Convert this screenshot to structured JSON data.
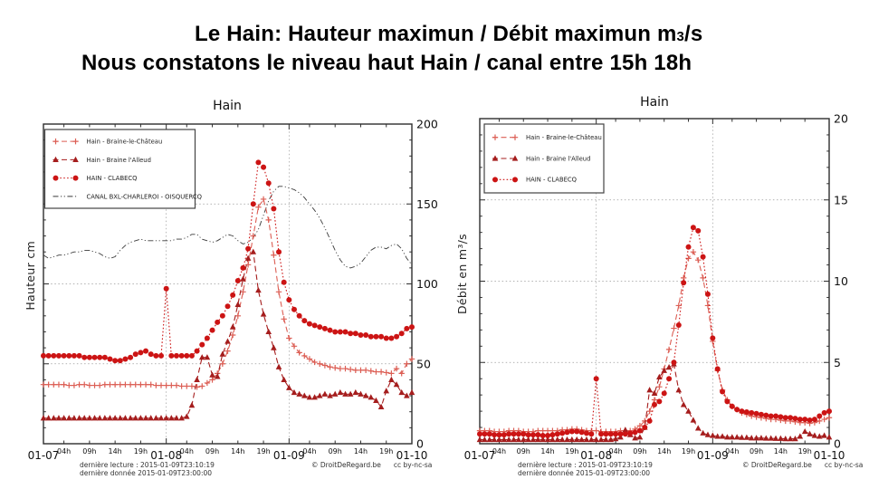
{
  "header": {
    "title_line1": {
      "pre": "Le Hain: Hauteur maximun  / Débit maximun m",
      "sub": "3",
      "post": "/s"
    },
    "title_line2": "Nous constatons le niveau haut Hain / canal entre 15h 18h"
  },
  "footer": {
    "line1": "dernière lecture : 2015-01-09T23:10:19",
    "line2": "dernière donnée  2015-01-09T23:00:00",
    "copyright": "© DroitDeRegard.be",
    "license": "cc by-nc-sa"
  },
  "x_ticks": [
    {
      "h": 0,
      "label": "01-07",
      "major": true
    },
    {
      "h": 4,
      "label": "04h",
      "major": false
    },
    {
      "h": 9,
      "label": "09h",
      "major": false
    },
    {
      "h": 14,
      "label": "14h",
      "major": false
    },
    {
      "h": 19,
      "label": "19h",
      "major": false
    },
    {
      "h": 24,
      "label": "01-08",
      "major": true
    },
    {
      "h": 28,
      "label": "04h",
      "major": false
    },
    {
      "h": 33,
      "label": "09h",
      "major": false
    },
    {
      "h": 38,
      "label": "14h",
      "major": false
    },
    {
      "h": 43,
      "label": "19h",
      "major": false
    },
    {
      "h": 48,
      "label": "01-09",
      "major": true
    },
    {
      "h": 52,
      "label": "04h",
      "major": false
    },
    {
      "h": 57,
      "label": "09h",
      "major": false
    },
    {
      "h": 62,
      "label": "14h",
      "major": false
    },
    {
      "h": 67,
      "label": "19h",
      "major": false
    },
    {
      "h": 72,
      "label": "01-10",
      "major": true
    }
  ],
  "chart_data": [
    {
      "type": "line",
      "title": "Hain",
      "xlabel": "",
      "ylabel": "Hauteur cm",
      "ylim": [
        0,
        200
      ],
      "yticks": [
        0,
        50,
        100,
        150,
        200
      ],
      "y_minor_step": 10,
      "x_hours_range": [
        0,
        72
      ],
      "x_days": [
        "01-07",
        "01-08",
        "01-09",
        "01-10"
      ],
      "grid": "dotted",
      "legend_position": "upper-left",
      "series": [
        {
          "name": "Hain - Braine-le-Château",
          "marker": "plus",
          "dash": "dashed",
          "color": "#dc5e54",
          "z": 1,
          "values": [
            37,
            37,
            37,
            37,
            37,
            36.5,
            36.5,
            37,
            37,
            36.5,
            36.5,
            36.5,
            37,
            37,
            37,
            37,
            37,
            37,
            37,
            37,
            37,
            37,
            36.5,
            36.5,
            36.5,
            36.5,
            36.5,
            36,
            36,
            36,
            35.5,
            36,
            38,
            40,
            44,
            50,
            58,
            68,
            80,
            95,
            112,
            130,
            148,
            153,
            140,
            118,
            95,
            78,
            66,
            61,
            57,
            55,
            53,
            51,
            50,
            49,
            48,
            47.5,
            47,
            47,
            46.5,
            46,
            46,
            46,
            45.5,
            45,
            45,
            44.5,
            44,
            47,
            44,
            50,
            53
          ]
        },
        {
          "name": "Hain - Braine l'Alleud",
          "marker": "triangle",
          "dash": "dashed",
          "color": "#a51d1d",
          "z": 2,
          "values": [
            16,
            16,
            16,
            16,
            16,
            16,
            16,
            16,
            16,
            16,
            16,
            16,
            16,
            16,
            16,
            16,
            16,
            16,
            16,
            16,
            16,
            16,
            16,
            16,
            16,
            16,
            16,
            16,
            17,
            24,
            40,
            54,
            54,
            43,
            42,
            56,
            64,
            73,
            87,
            103,
            116,
            120,
            96,
            81,
            70,
            60,
            48,
            40,
            35,
            32,
            31,
            30,
            29,
            29,
            30,
            31,
            30,
            31,
            32,
            31,
            31,
            32,
            31,
            30,
            29,
            27,
            23,
            33,
            40,
            37,
            32,
            30,
            32
          ]
        },
        {
          "name": "HAIN - CLABECQ",
          "marker": "circle",
          "dash": "dotted",
          "color": "#cc1414",
          "z": 3,
          "values": [
            55,
            55,
            55,
            55,
            55,
            55,
            55,
            55,
            54,
            54,
            54,
            54,
            54,
            53,
            52,
            52,
            53,
            54,
            56,
            57,
            58,
            56,
            55,
            55,
            97,
            55,
            55,
            55,
            55,
            55,
            58,
            62,
            66,
            71,
            76,
            80,
            86,
            93,
            102,
            110,
            122,
            150,
            176,
            173,
            163,
            147,
            120,
            101,
            90,
            84,
            80,
            77,
            75,
            74,
            73,
            72,
            71,
            70,
            70,
            70,
            69,
            69,
            68,
            68,
            67,
            67,
            67,
            66,
            66,
            67,
            69,
            72,
            73
          ]
        },
        {
          "name": "CANAL BXL-CHARLEROI - OISQUERCQ",
          "marker": "none",
          "dash": "dashdot",
          "color": "#3a3a3a",
          "z": 0,
          "values": [
            118,
            116,
            117,
            118,
            118,
            119,
            120,
            120,
            121,
            121,
            120,
            119,
            117,
            116,
            117,
            121,
            124,
            126,
            127,
            128,
            127,
            127,
            127,
            127,
            127,
            127,
            128,
            128,
            129,
            131,
            131,
            128,
            127,
            126,
            127,
            129,
            131,
            130,
            127,
            125,
            126,
            129,
            134,
            143,
            152,
            158,
            161,
            161,
            160,
            159,
            157,
            154,
            150,
            146,
            141,
            135,
            128,
            121,
            115,
            111,
            110,
            111,
            113,
            117,
            121,
            123,
            123,
            122,
            124,
            125,
            122,
            116,
            112
          ]
        }
      ]
    },
    {
      "type": "line",
      "title": "Hain",
      "xlabel": "",
      "ylabel": "Débit en m³/s",
      "ylim": [
        0,
        20
      ],
      "yticks": [
        0,
        5,
        10,
        15,
        20
      ],
      "y_minor_step": 1,
      "x_hours_range": [
        0,
        72
      ],
      "x_days": [
        "01-07",
        "01-08",
        "01-09",
        "01-10"
      ],
      "grid": "dotted",
      "legend_position": "upper-left",
      "series": [
        {
          "name": "Hain - Braine-le-Château",
          "marker": "plus",
          "dash": "dashed",
          "color": "#dc5e54",
          "z": 1,
          "values": [
            0.8,
            0.8,
            0.8,
            0.75,
            0.75,
            0.75,
            0.8,
            0.8,
            0.8,
            0.75,
            0.75,
            0.75,
            0.8,
            0.8,
            0.8,
            0.8,
            0.8,
            0.85,
            0.85,
            0.9,
            0.9,
            0.85,
            0.8,
            0.8,
            0.8,
            0.75,
            0.75,
            0.75,
            0.75,
            0.8,
            0.8,
            0.8,
            0.9,
            1.1,
            1.4,
            2.0,
            2.7,
            3.5,
            4.6,
            5.8,
            7.1,
            8.5,
            10.2,
            11.4,
            11.8,
            11.3,
            10.2,
            8.5,
            6.3,
            4.5,
            3.3,
            2.7,
            2.3,
            2.1,
            1.9,
            1.8,
            1.7,
            1.65,
            1.6,
            1.55,
            1.5,
            1.5,
            1.45,
            1.4,
            1.4,
            1.35,
            1.3,
            1.3,
            1.25,
            1.3,
            1.4,
            1.5,
            1.6
          ]
        },
        {
          "name": "Hain - Braine l'Alleud",
          "marker": "triangle",
          "dash": "dashed",
          "color": "#a51d1d",
          "z": 2,
          "values": [
            0.25,
            0.25,
            0.25,
            0.25,
            0.25,
            0.25,
            0.25,
            0.25,
            0.25,
            0.25,
            0.25,
            0.25,
            0.25,
            0.25,
            0.25,
            0.25,
            0.25,
            0.25,
            0.25,
            0.25,
            0.25,
            0.25,
            0.25,
            0.25,
            0.25,
            0.25,
            0.25,
            0.25,
            0.3,
            0.4,
            0.85,
            0.55,
            0.35,
            0.4,
            1.0,
            3.3,
            3.1,
            4.1,
            4.5,
            4.7,
            4.9,
            3.3,
            2.4,
            2.0,
            1.45,
            0.95,
            0.65,
            0.55,
            0.5,
            0.45,
            0.45,
            0.4,
            0.4,
            0.4,
            0.38,
            0.38,
            0.35,
            0.35,
            0.35,
            0.33,
            0.33,
            0.32,
            0.32,
            0.3,
            0.3,
            0.3,
            0.45,
            0.75,
            0.6,
            0.5,
            0.45,
            0.5,
            0.4
          ]
        },
        {
          "name": "HAIN - CLABECQ",
          "marker": "circle",
          "dash": "dotted",
          "color": "#cc1414",
          "z": 3,
          "values": [
            0.6,
            0.6,
            0.6,
            0.55,
            0.55,
            0.55,
            0.6,
            0.6,
            0.6,
            0.6,
            0.55,
            0.55,
            0.55,
            0.5,
            0.5,
            0.55,
            0.6,
            0.65,
            0.7,
            0.75,
            0.75,
            0.7,
            0.65,
            0.6,
            4.0,
            0.6,
            0.6,
            0.6,
            0.6,
            0.6,
            0.6,
            0.65,
            0.7,
            0.8,
            1.0,
            1.4,
            2.4,
            2.6,
            3.1,
            4.0,
            5.0,
            7.3,
            9.9,
            12.1,
            13.3,
            13.1,
            11.5,
            9.2,
            6.5,
            4.6,
            3.2,
            2.6,
            2.3,
            2.1,
            2.0,
            1.95,
            1.9,
            1.85,
            1.8,
            1.75,
            1.7,
            1.7,
            1.65,
            1.6,
            1.6,
            1.55,
            1.5,
            1.5,
            1.45,
            1.5,
            1.7,
            1.9,
            2.0
          ]
        }
      ]
    }
  ]
}
